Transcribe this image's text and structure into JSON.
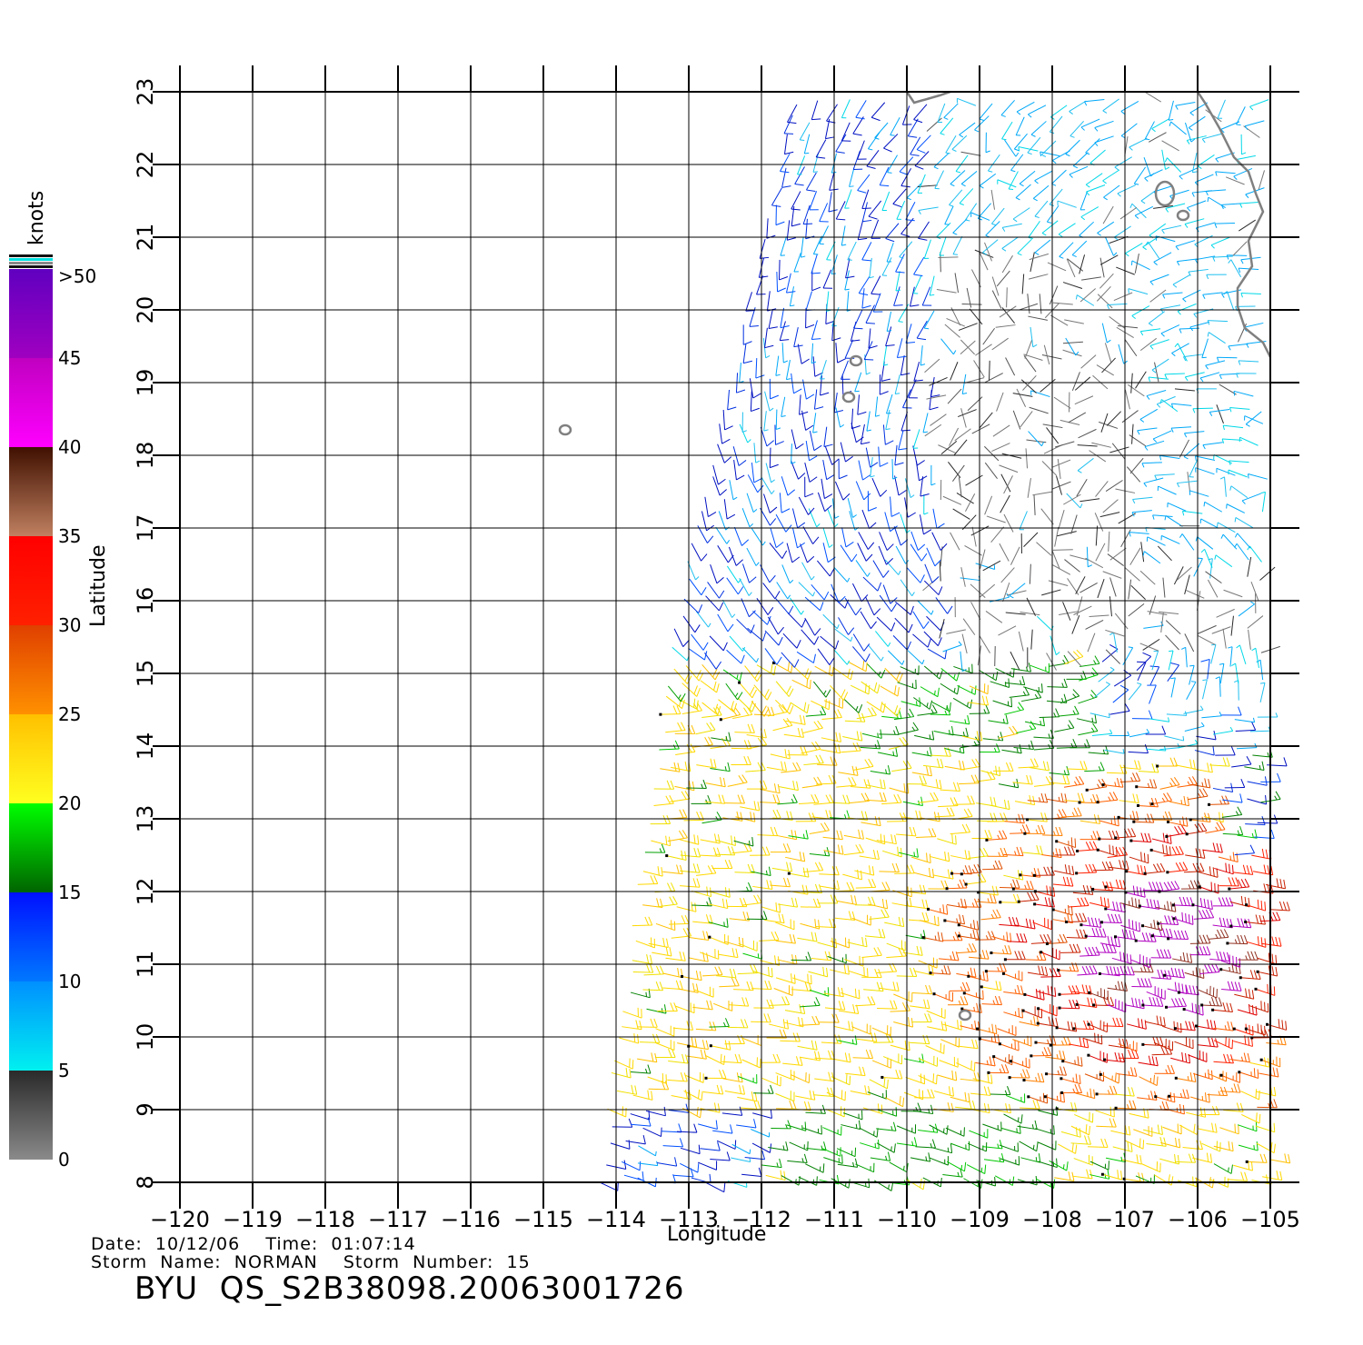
{
  "footer": {
    "date_time": "Date:  10/12/06    Time:  01:07:14",
    "storm": "Storm  Name:  NORMAN    Storm  Number:  15",
    "product": "BYU  QS_S2B38098.20063001726"
  },
  "axes": {
    "xlabel": "Longitude",
    "ylabel": "Latitude",
    "x_ticks": [
      "−120",
      "−119",
      "−118",
      "−117",
      "−116",
      "−115",
      "−114",
      "−113",
      "−112",
      "−111",
      "−110",
      "−109",
      "−108",
      "−107",
      "−106",
      "−105"
    ],
    "y_ticks": [
      "8",
      "9",
      "10",
      "11",
      "12",
      "13",
      "14",
      "15",
      "16",
      "17",
      "18",
      "19",
      "20",
      "21",
      "22",
      "23"
    ],
    "lon_range": [
      -120,
      -105
    ],
    "lat_range": [
      8,
      23
    ]
  },
  "colorbar": {
    "unit": "knots",
    "labels": [
      "0",
      "5",
      "10",
      "15",
      "20",
      "25",
      "30",
      "35",
      "40",
      "45",
      ">50"
    ],
    "bands": [
      {
        "range": "0-5",
        "from": "#8a8a8a",
        "to": "#2a2a2a"
      },
      {
        "range": "5-10",
        "from": "#00f0f0",
        "to": "#0090ff"
      },
      {
        "range": "10-15",
        "from": "#0078ff",
        "to": "#0010ff"
      },
      {
        "range": "15-20",
        "from": "#006400",
        "to": "#00ff00"
      },
      {
        "range": "20-25",
        "from": "#ffff20",
        "to": "#ffc000"
      },
      {
        "range": "25-30",
        "from": "#ff9000",
        "to": "#e04000"
      },
      {
        "range": "30-35",
        "from": "#ff2000",
        "to": "#ff0000"
      },
      {
        "range": "35-40",
        "from": "#c08060",
        "to": "#401000"
      },
      {
        "range": "40-45",
        "from": "#ff00ff",
        "to": "#c000c0"
      },
      {
        "range": "45-50",
        "from": "#a000c0",
        "to": "#6000c0"
      }
    ]
  },
  "wind_field": {
    "description_regions": [
      {
        "name": "calm-core",
        "lon": [
          -109.8,
          -106.5
        ],
        "lat": [
          14.8,
          20.5
        ],
        "speed_kt": 3
      },
      {
        "name": "northwest",
        "lon": [
          -111.5,
          -109.5
        ],
        "lat": [
          14.5,
          22.8
        ],
        "speed_kt": 12
      },
      {
        "name": "east-north",
        "lon": [
          -108.5,
          -105
        ],
        "lat": [
          15,
          22.8
        ],
        "speed_kt": 7
      },
      {
        "name": "southern-belt",
        "lon": [
          -114,
          -105
        ],
        "lat": [
          8.5,
          15
        ],
        "speed_kt": 22
      },
      {
        "name": "storm-core",
        "lon": [
          -108.5,
          -105
        ],
        "lat": [
          9.5,
          13
        ],
        "speed_kt": 34
      }
    ],
    "swath_edge": [
      [
        -111.5,
        22.8
      ],
      [
        -113.2,
        15.5
      ],
      [
        -114.2,
        8
      ]
    ],
    "east_edge": -105
  },
  "colors": {
    "grid": "#000000",
    "coastline": "#808080",
    "background": "#ffffff"
  },
  "islands": [
    {
      "name": "island-clarion",
      "lon": -114.7,
      "lat": 18.35
    },
    {
      "name": "island-socorro",
      "lon": -110.8,
      "lat": 18.8
    },
    {
      "name": "island-san-benedicto",
      "lon": -110.7,
      "lat": 19.3
    },
    {
      "name": "island-clipperton",
      "lon": -109.2,
      "lat": 10.3
    }
  ]
}
